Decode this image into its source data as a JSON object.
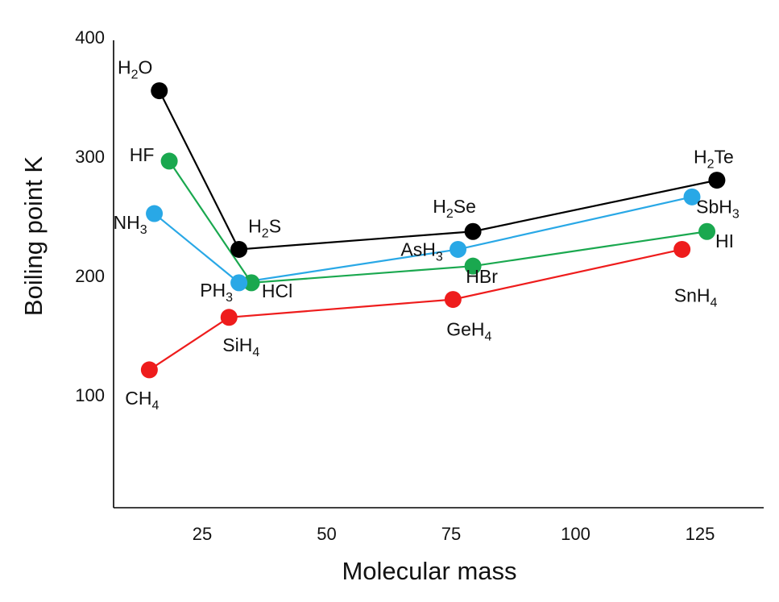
{
  "chart_data": {
    "type": "line",
    "xlabel": "Molecular mass",
    "ylabel": "Boiling point K",
    "xlim": [
      0,
      150
    ],
    "ylim": [
      0,
      400
    ],
    "x_ticks": [
      25,
      50,
      75,
      100,
      125
    ],
    "y_ticks": [
      100,
      200,
      300,
      400
    ],
    "grid": false,
    "series": [
      {
        "color": "#000000",
        "points": [
          {
            "x": 18,
            "y": 355,
            "label": {
              "base": "H",
              "sub": "2",
              "rest": "O"
            }
          },
          {
            "x": 34,
            "y": 222,
            "label": {
              "base": "H",
              "sub": "2",
              "rest": "S"
            }
          },
          {
            "x": 81,
            "y": 237,
            "label": {
              "base": "H",
              "sub": "2",
              "rest": "Se"
            }
          },
          {
            "x": 130,
            "y": 280,
            "label": {
              "base": "H",
              "sub": "2",
              "rest": "Te"
            }
          }
        ]
      },
      {
        "color": "#1aa84f",
        "points": [
          {
            "x": 20,
            "y": 296,
            "label": {
              "base": "HF",
              "sub": "",
              "rest": ""
            }
          },
          {
            "x": 36.5,
            "y": 194,
            "label": {
              "base": "HCl",
              "sub": "",
              "rest": ""
            }
          },
          {
            "x": 81,
            "y": 208,
            "label": {
              "base": "HBr",
              "sub": "",
              "rest": ""
            }
          },
          {
            "x": 128,
            "y": 237,
            "label": {
              "base": "HI",
              "sub": "",
              "rest": ""
            }
          }
        ]
      },
      {
        "color": "#29a8e6",
        "points": [
          {
            "x": 17,
            "y": 252,
            "label": {
              "base": "NH",
              "sub": "3",
              "rest": ""
            }
          },
          {
            "x": 34,
            "y": 194,
            "label": {
              "base": "PH",
              "sub": "3",
              "rest": ""
            }
          },
          {
            "x": 78,
            "y": 222,
            "label": {
              "base": "AsH",
              "sub": "3",
              "rest": ""
            }
          },
          {
            "x": 125,
            "y": 266,
            "label": {
              "base": "SbH",
              "sub": "3",
              "rest": ""
            }
          }
        ]
      },
      {
        "color": "#ee1c1c",
        "points": [
          {
            "x": 16,
            "y": 121,
            "label": {
              "base": "CH",
              "sub": "4",
              "rest": ""
            }
          },
          {
            "x": 32,
            "y": 165,
            "label": {
              "base": "SiH",
              "sub": "4",
              "rest": ""
            }
          },
          {
            "x": 77,
            "y": 180,
            "label": {
              "base": "GeH",
              "sub": "4",
              "rest": ""
            }
          },
          {
            "x": 123,
            "y": 222,
            "label": {
              "base": "SnH",
              "sub": "4",
              "rest": ""
            }
          }
        ]
      }
    ]
  }
}
